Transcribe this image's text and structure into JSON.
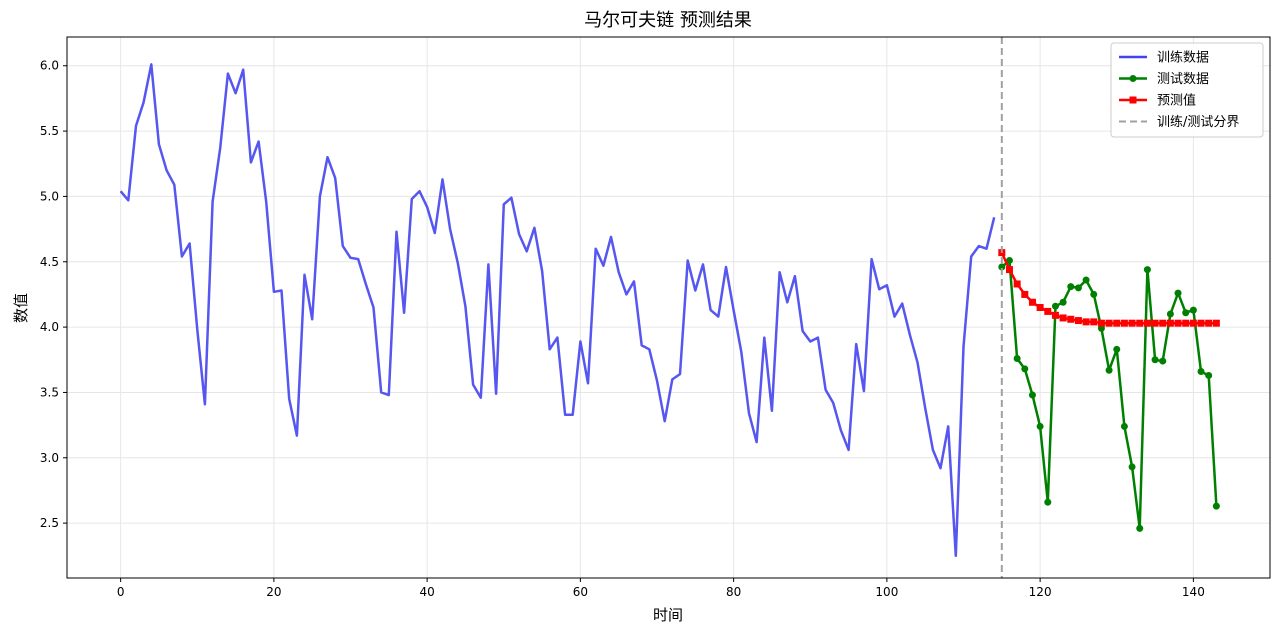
{
  "chart_data": {
    "type": "line",
    "title": "马尔可夫链 预测结果",
    "xlabel": "时间",
    "ylabel": "数值",
    "xlim": [
      -7,
      150
    ],
    "ylim": [
      2.08,
      6.22
    ],
    "xticks": [
      0,
      20,
      40,
      60,
      80,
      100,
      120,
      140
    ],
    "yticks": [
      2.5,
      3.0,
      3.5,
      4.0,
      4.5,
      5.0,
      5.5,
      6.0
    ],
    "grid": true,
    "legend_position": "top-right",
    "boundary_x": 115,
    "series": [
      {
        "name": "训练数据",
        "color": "#4444ee",
        "style": "line",
        "x_start": 0,
        "values": [
          5.04,
          4.97,
          5.54,
          5.72,
          6.01,
          5.4,
          5.2,
          5.09,
          4.54,
          4.64,
          3.98,
          3.41,
          4.96,
          5.37,
          5.94,
          5.79,
          5.97,
          5.26,
          5.42,
          4.96,
          4.27,
          4.28,
          3.45,
          3.17,
          4.4,
          4.06,
          5.0,
          5.3,
          5.14,
          4.62,
          4.53,
          4.52,
          4.33,
          4.15,
          3.5,
          3.48,
          4.73,
          4.11,
          4.98,
          5.04,
          4.92,
          4.72,
          5.13,
          4.75,
          4.49,
          4.16,
          3.56,
          3.46,
          4.48,
          3.49,
          4.94,
          4.99,
          4.71,
          4.58,
          4.76,
          4.43,
          3.83,
          3.92,
          3.33,
          3.33,
          3.89,
          3.57,
          4.6,
          4.47,
          4.69,
          4.42,
          4.25,
          4.35,
          3.86,
          3.83,
          3.59,
          3.28,
          3.6,
          3.64,
          4.51,
          4.28,
          4.48,
          4.13,
          4.08,
          4.46,
          4.13,
          3.81,
          3.34,
          3.12,
          3.92,
          3.36,
          4.42,
          4.19,
          4.39,
          3.97,
          3.89,
          3.92,
          3.52,
          3.42,
          3.21,
          3.06,
          3.87,
          3.51,
          4.52,
          4.29,
          4.32,
          4.08,
          4.18,
          3.94,
          3.73,
          3.38,
          3.06,
          2.92,
          3.24,
          2.25,
          3.85,
          4.54,
          4.62,
          4.6,
          4.84
        ]
      },
      {
        "name": "测试数据",
        "color": "#008000",
        "style": "line-circle",
        "x_start": 115,
        "values": [
          4.46,
          4.51,
          3.76,
          3.68,
          3.48,
          3.24,
          2.66,
          4.16,
          4.19,
          4.31,
          4.3,
          4.36,
          4.25,
          3.99,
          3.67,
          3.83,
          3.24,
          2.93,
          2.46,
          4.44,
          3.75,
          3.74,
          4.1,
          4.26,
          4.11,
          4.13,
          3.66,
          3.63,
          2.63
        ]
      },
      {
        "name": "预测值",
        "color": "#ff0000",
        "style": "line-square",
        "x_start": 115,
        "values": [
          4.57,
          4.44,
          4.33,
          4.25,
          4.19,
          4.15,
          4.12,
          4.09,
          4.07,
          4.06,
          4.05,
          4.04,
          4.04,
          4.03,
          4.03,
          4.03,
          4.03,
          4.03,
          4.03,
          4.03,
          4.03,
          4.03,
          4.03,
          4.03,
          4.03,
          4.03,
          4.03,
          4.03,
          4.03
        ]
      }
    ],
    "boundary_legend": "训练/测试分界",
    "boundary_color": "#a0a0a0"
  }
}
